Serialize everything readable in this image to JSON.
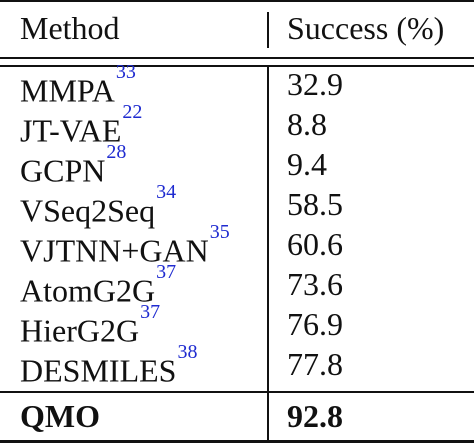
{
  "table": {
    "header": {
      "method": "Method",
      "success": "Success (%)"
    },
    "rows": [
      {
        "method": "MMPA",
        "cite": "33",
        "value": "32.9"
      },
      {
        "method": "JT-VAE",
        "cite": "22",
        "value": "8.8"
      },
      {
        "method": "GCPN",
        "cite": "28",
        "value": "9.4"
      },
      {
        "method": "VSeq2Seq",
        "cite": "34",
        "value": "58.5"
      },
      {
        "method": "VJTNN+GAN",
        "cite": "35",
        "value": "60.6"
      },
      {
        "method": "AtomG2G",
        "cite": "37",
        "value": "73.6"
      },
      {
        "method": "HierG2G",
        "cite": "37",
        "value": "76.9"
      },
      {
        "method": "DESMILES",
        "cite": "38",
        "value": "77.8"
      }
    ],
    "final": {
      "method": "QMO",
      "value": "92.8"
    }
  },
  "colors": {
    "citation": "#1f2bd0",
    "text": "#111111"
  }
}
